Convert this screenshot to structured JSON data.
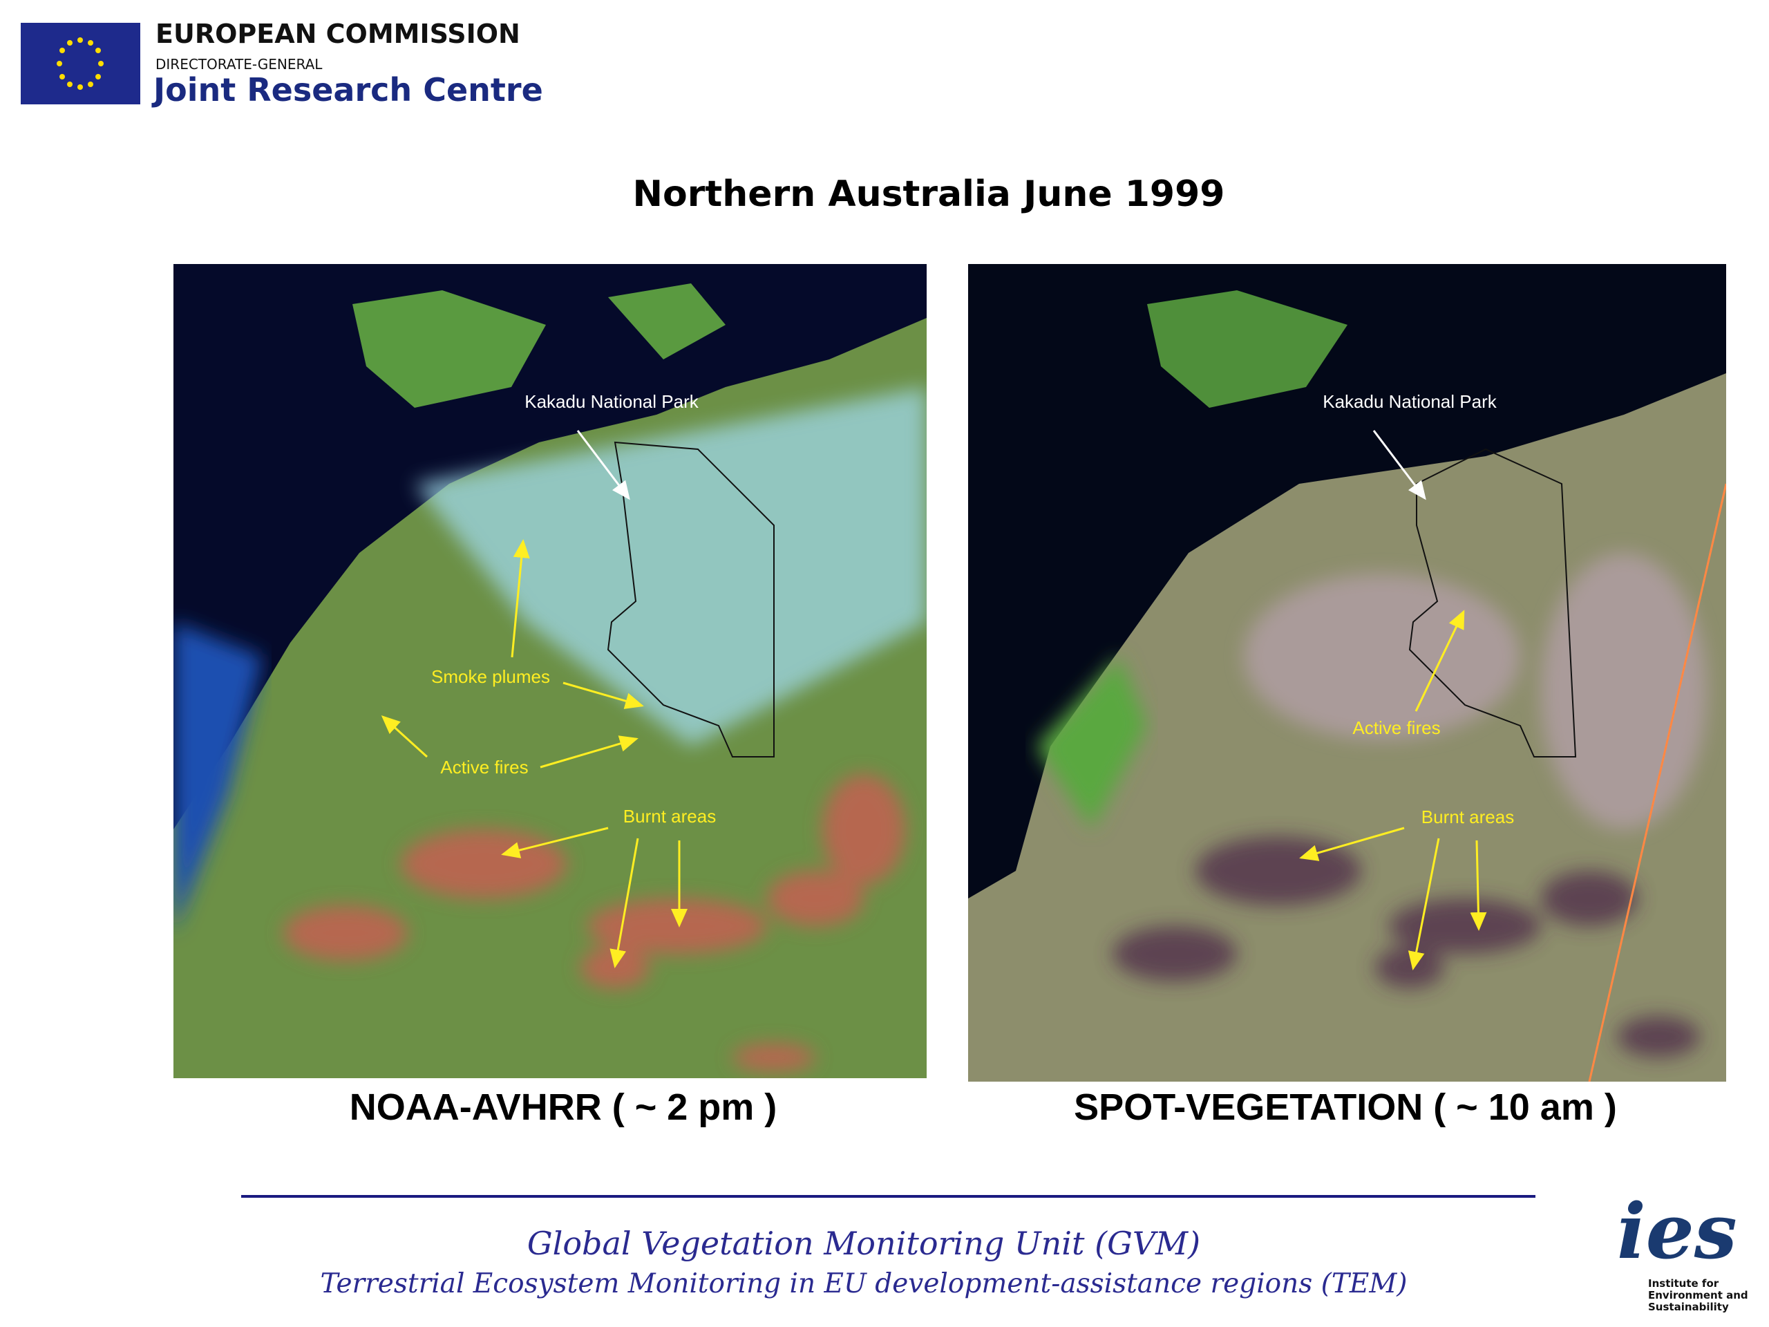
{
  "header": {
    "organization": "EUROPEAN COMMISSION",
    "subtitle": "DIRECTORATE-GENERAL",
    "unit": "Joint Research Centre"
  },
  "title": "Northern Australia June 1999",
  "panels": [
    {
      "caption": "NOAA-AVHRR ( ~ 2 pm )",
      "annotations": [
        "Kakadu National Park",
        "Smoke plumes",
        "Active fires",
        "Burnt areas"
      ]
    },
    {
      "caption": "SPOT-VEGETATION ( ~ 10 am )",
      "annotations": [
        "Kakadu National Park",
        "Active fires",
        "Burnt areas"
      ]
    }
  ],
  "footer": {
    "line1": "Global Vegetation Monitoring Unit (GVM)",
    "line2": "Terrestrial Ecosystem Monitoring in EU development-assistance regions (TEM)"
  },
  "logo": {
    "mark": "ies",
    "text": [
      "Institute for",
      "Environment and",
      "Sustainability"
    ]
  }
}
